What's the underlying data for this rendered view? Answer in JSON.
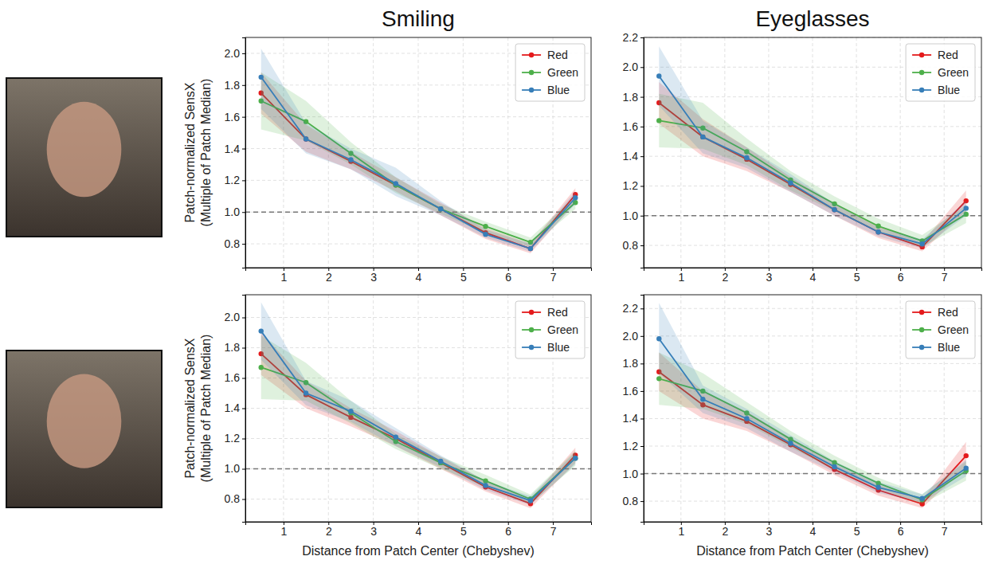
{
  "chart_data": [
    {
      "type": "line",
      "title": "Smiling",
      "y_label": [
        "Patch-normalized SensX",
        "(Multiple of Patch Median)"
      ],
      "x": [
        0.5,
        1.5,
        2.5,
        3.5,
        4.5,
        5.5,
        6.5,
        7.5
      ],
      "xlim": [
        0.15,
        7.85
      ],
      "xticks": [
        1,
        2,
        3,
        4,
        5,
        6,
        7
      ],
      "ylim": [
        0.65,
        2.1
      ],
      "yticks": [
        0.8,
        {
          "value": 1,
          "label": "1.0"
        },
        1.2,
        1.4,
        1.6,
        1.8,
        {
          "value": 2,
          "label": "2.0"
        }
      ],
      "grid": true,
      "legend": "upper right",
      "marker": "circle",
      "reference": 1,
      "series": [
        {
          "name": "Red",
          "color": "#e41a1c",
          "values": [
            1.75,
            1.46,
            1.32,
            1.17,
            1.02,
            0.87,
            0.77,
            1.11
          ],
          "lower": [
            1.62,
            1.38,
            1.27,
            1.13,
            0.98,
            0.83,
            0.74,
            1.06
          ],
          "upper": [
            1.88,
            1.55,
            1.38,
            1.22,
            1.06,
            0.9,
            0.8,
            1.15
          ]
        },
        {
          "name": "Green",
          "color": "#4daf4a",
          "values": [
            1.7,
            1.57,
            1.37,
            1.17,
            1.02,
            0.91,
            0.81,
            1.06
          ],
          "lower": [
            1.52,
            1.45,
            1.3,
            1.12,
            0.99,
            0.87,
            0.78,
            1.02
          ],
          "upper": [
            1.88,
            1.7,
            1.44,
            1.22,
            1.05,
            0.94,
            0.84,
            1.1
          ]
        },
        {
          "name": "Blue",
          "color": "#377eb8",
          "values": [
            1.85,
            1.46,
            1.33,
            1.18,
            1.02,
            0.86,
            0.77,
            1.09
          ],
          "lower": [
            1.65,
            1.37,
            1.27,
            1.1,
            0.98,
            0.84,
            0.75,
            1.05
          ],
          "upper": [
            2.03,
            1.56,
            1.4,
            1.28,
            1.07,
            0.89,
            0.8,
            1.13
          ]
        }
      ]
    },
    {
      "type": "line",
      "title": "Eyeglasses",
      "x": [
        0.5,
        1.5,
        2.5,
        3.5,
        4.5,
        5.5,
        6.5,
        7.5
      ],
      "xlim": [
        0.15,
        7.85
      ],
      "xticks": [
        1,
        2,
        3,
        4,
        5,
        6,
        7
      ],
      "ylim": [
        0.65,
        2.2
      ],
      "yticks": [
        0.8,
        {
          "value": 1,
          "label": "1.0"
        },
        1.2,
        1.4,
        1.6,
        1.8,
        {
          "value": 2,
          "label": "2.0"
        },
        2.2
      ],
      "grid": true,
      "legend": "upper right",
      "marker": "circle",
      "reference": 1,
      "series": [
        {
          "name": "Red",
          "color": "#e41a1c",
          "values": [
            1.76,
            1.53,
            1.38,
            1.21,
            1.04,
            0.89,
            0.79,
            1.1
          ],
          "lower": [
            1.62,
            1.4,
            1.3,
            1.16,
            1.0,
            0.85,
            0.76,
            1.03
          ],
          "upper": [
            1.9,
            1.65,
            1.46,
            1.26,
            1.08,
            0.93,
            0.82,
            1.17
          ]
        },
        {
          "name": "Green",
          "color": "#4daf4a",
          "values": [
            1.64,
            1.59,
            1.43,
            1.24,
            1.08,
            0.93,
            0.83,
            1.01
          ],
          "lower": [
            1.46,
            1.45,
            1.34,
            1.17,
            1.03,
            0.89,
            0.79,
            0.95
          ],
          "upper": [
            1.82,
            1.76,
            1.52,
            1.3,
            1.13,
            0.98,
            0.87,
            1.07
          ]
        },
        {
          "name": "Blue",
          "color": "#377eb8",
          "values": [
            1.94,
            1.53,
            1.39,
            1.22,
            1.04,
            0.89,
            0.81,
            1.05
          ],
          "lower": [
            1.74,
            1.42,
            1.32,
            1.16,
            1.0,
            0.86,
            0.78,
            1.0
          ],
          "upper": [
            2.14,
            1.64,
            1.46,
            1.28,
            1.08,
            0.92,
            0.84,
            1.1
          ]
        }
      ]
    },
    {
      "type": "line",
      "y_label": [
        "Patch-normalized SensX",
        "(Multiple of Patch Median)"
      ],
      "x_label": "Distance from Patch Center (Chebyshev)",
      "x": [
        0.5,
        1.5,
        2.5,
        3.5,
        4.5,
        5.5,
        6.5,
        7.5
      ],
      "xlim": [
        0.15,
        7.85
      ],
      "xticks": [
        1,
        2,
        3,
        4,
        5,
        6,
        7
      ],
      "ylim": [
        0.65,
        2.15
      ],
      "yticks": [
        0.8,
        {
          "value": 1,
          "label": "1.0"
        },
        1.2,
        1.4,
        1.6,
        1.8,
        {
          "value": 2,
          "label": "2.0"
        }
      ],
      "grid": true,
      "legend": "upper right",
      "marker": "circle",
      "reference": 1,
      "series": [
        {
          "name": "Red",
          "color": "#e41a1c",
          "values": [
            1.76,
            1.49,
            1.34,
            1.2,
            1.04,
            0.88,
            0.77,
            1.09
          ],
          "lower": [
            1.62,
            1.4,
            1.28,
            1.15,
            1.0,
            0.85,
            0.74,
            1.04
          ],
          "upper": [
            1.9,
            1.58,
            1.4,
            1.25,
            1.08,
            0.92,
            0.8,
            1.14
          ]
        },
        {
          "name": "Green",
          "color": "#4daf4a",
          "values": [
            1.67,
            1.57,
            1.37,
            1.18,
            1.04,
            0.92,
            0.8,
            1.07
          ],
          "lower": [
            1.46,
            1.45,
            1.3,
            1.13,
            1.0,
            0.88,
            0.77,
            1.02
          ],
          "upper": [
            1.88,
            1.7,
            1.45,
            1.23,
            1.08,
            0.96,
            0.83,
            1.12
          ]
        },
        {
          "name": "Blue",
          "color": "#377eb8",
          "values": [
            1.91,
            1.5,
            1.38,
            1.21,
            1.05,
            0.89,
            0.79,
            1.07
          ],
          "lower": [
            1.72,
            1.42,
            1.31,
            1.15,
            1.01,
            0.86,
            0.76,
            1.03
          ],
          "upper": [
            2.1,
            1.58,
            1.45,
            1.27,
            1.09,
            0.92,
            0.82,
            1.11
          ]
        }
      ]
    },
    {
      "type": "line",
      "x_label": "Distance from Patch Center (Chebyshev)",
      "x": [
        0.5,
        1.5,
        2.5,
        3.5,
        4.5,
        5.5,
        6.5,
        7.5
      ],
      "xlim": [
        0.15,
        7.85
      ],
      "xticks": [
        1,
        2,
        3,
        4,
        5,
        6,
        7
      ],
      "ylim": [
        0.65,
        2.3
      ],
      "yticks": [
        0.8,
        {
          "value": 1,
          "label": "1.0"
        },
        1.2,
        1.4,
        1.6,
        1.8,
        {
          "value": 2,
          "label": "2.0"
        },
        2.2
      ],
      "grid": true,
      "legend": "upper right",
      "marker": "circle",
      "reference": 1,
      "series": [
        {
          "name": "Red",
          "color": "#e41a1c",
          "values": [
            1.74,
            1.5,
            1.38,
            1.21,
            1.03,
            0.88,
            0.78,
            1.13
          ],
          "lower": [
            1.6,
            1.4,
            1.31,
            1.16,
            0.99,
            0.84,
            0.75,
            1.05
          ],
          "upper": [
            1.88,
            1.6,
            1.45,
            1.26,
            1.07,
            0.92,
            0.81,
            1.23
          ]
        },
        {
          "name": "Green",
          "color": "#4daf4a",
          "values": [
            1.69,
            1.6,
            1.44,
            1.25,
            1.08,
            0.93,
            0.81,
            1.02
          ],
          "lower": [
            1.5,
            1.47,
            1.36,
            1.19,
            1.03,
            0.89,
            0.78,
            0.95
          ],
          "upper": [
            1.88,
            1.73,
            1.52,
            1.31,
            1.13,
            0.97,
            0.85,
            1.09
          ]
        },
        {
          "name": "Blue",
          "color": "#377eb8",
          "values": [
            1.98,
            1.54,
            1.4,
            1.22,
            1.05,
            0.9,
            0.82,
            1.04
          ],
          "lower": [
            1.73,
            1.44,
            1.33,
            1.16,
            1.01,
            0.86,
            0.79,
            0.98
          ],
          "upper": [
            2.24,
            1.64,
            1.47,
            1.28,
            1.09,
            0.94,
            0.85,
            1.1
          ]
        }
      ]
    }
  ]
}
